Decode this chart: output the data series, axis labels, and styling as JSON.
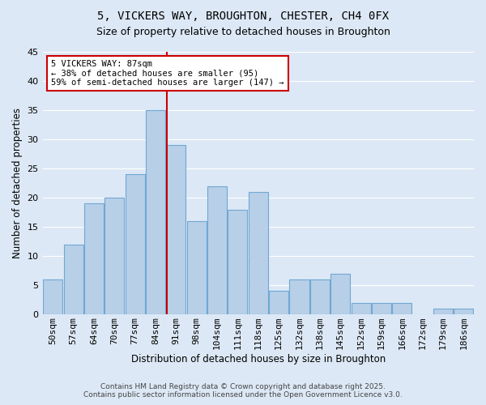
{
  "title": "5, VICKERS WAY, BROUGHTON, CHESTER, CH4 0FX",
  "subtitle": "Size of property relative to detached houses in Broughton",
  "xlabel": "Distribution of detached houses by size in Broughton",
  "ylabel": "Number of detached properties",
  "categories": [
    "50sqm",
    "57sqm",
    "64sqm",
    "70sqm",
    "77sqm",
    "84sqm",
    "91sqm",
    "98sqm",
    "104sqm",
    "111sqm",
    "118sqm",
    "125sqm",
    "132sqm",
    "138sqm",
    "145sqm",
    "152sqm",
    "159sqm",
    "166sqm",
    "172sqm",
    "179sqm",
    "186sqm"
  ],
  "values": [
    6,
    12,
    19,
    20,
    24,
    35,
    29,
    16,
    22,
    18,
    21,
    4,
    6,
    6,
    7,
    2,
    2,
    2,
    0,
    1,
    1
  ],
  "bar_color": "#b8cfe8",
  "bar_edge_color": "#6fa8d4",
  "background_color": "#dce8f5",
  "grid_color": "#ffffff",
  "vline_x": 5.57,
  "vline_color": "#cc0000",
  "annotation_title": "5 VICKERS WAY: 87sqm",
  "annotation_line1": "← 38% of detached houses are smaller (95)",
  "annotation_line2": "59% of semi-detached houses are larger (147) →",
  "annotation_box_color": "#ffffff",
  "annotation_box_edge": "#cc0000",
  "ylim": [
    0,
    45
  ],
  "yticks": [
    0,
    5,
    10,
    15,
    20,
    25,
    30,
    35,
    40,
    45
  ],
  "footer1": "Contains HM Land Registry data © Crown copyright and database right 2025.",
  "footer2": "Contains public sector information licensed under the Open Government Licence v3.0."
}
